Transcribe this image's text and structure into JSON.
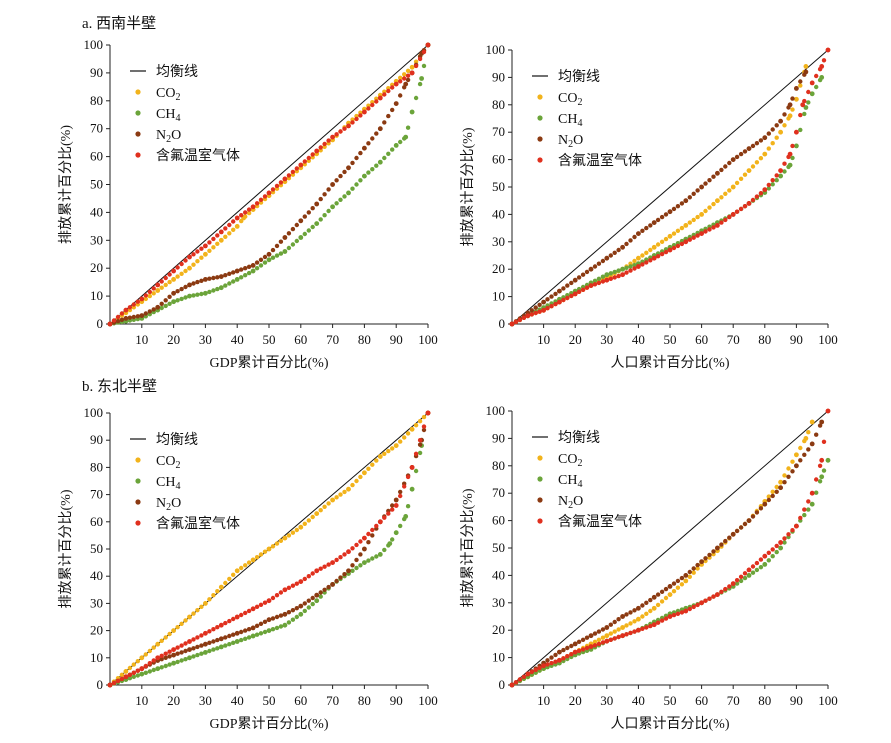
{
  "panels": {
    "a": {
      "label": "a. 西南半壁"
    },
    "b": {
      "label": "b. 东北半壁"
    }
  },
  "legend": [
    {
      "key": "eq",
      "label": "均衡线",
      "color": "#111111"
    },
    {
      "key": "co2",
      "label": "CO",
      "sub": "2",
      "color": "#f2b31b"
    },
    {
      "key": "ch4",
      "label": "CH",
      "sub": "4",
      "color": "#6ba43a"
    },
    {
      "key": "n2o",
      "label": "N",
      "sub": "2",
      "suffix": "O",
      "color": "#8b3a12"
    },
    {
      "key": "fgas",
      "label": "含氟温室气体",
      "color": "#e0301e"
    }
  ],
  "chart_data": [
    {
      "panel": "a",
      "type": "scatter",
      "xlabel": "GDP累计百分比(%)",
      "ylabel": "排放累计百分比(%)",
      "xlim": [
        0,
        100
      ],
      "ylim": [
        0,
        100
      ],
      "xticks": [
        10,
        20,
        30,
        40,
        50,
        60,
        70,
        80,
        90,
        100
      ],
      "yticks": [
        0,
        10,
        20,
        30,
        40,
        50,
        60,
        70,
        80,
        90,
        100
      ],
      "series": [
        {
          "name": "均衡线",
          "key": "eq",
          "x": [
            0,
            100
          ],
          "y": [
            0,
            100
          ]
        },
        {
          "name": "CO2",
          "key": "co2",
          "x": [
            0,
            5,
            10,
            15,
            20,
            25,
            30,
            35,
            40,
            42,
            45,
            50,
            55,
            60,
            65,
            70,
            75,
            80,
            85,
            90,
            95,
            100
          ],
          "y": [
            0,
            4,
            8,
            12,
            16,
            20,
            25,
            30,
            35,
            38,
            41,
            46,
            51,
            56,
            61,
            66,
            72,
            77,
            82,
            87,
            92,
            100
          ]
        },
        {
          "name": "CH4",
          "key": "ch4",
          "x": [
            0,
            5,
            10,
            15,
            20,
            25,
            30,
            35,
            40,
            45,
            50,
            55,
            60,
            65,
            70,
            75,
            80,
            85,
            90,
            93,
            95,
            98,
            100
          ],
          "y": [
            0,
            1,
            2,
            5,
            8,
            10,
            11,
            13,
            16,
            19,
            23,
            26,
            31,
            36,
            42,
            47,
            53,
            58,
            64,
            67,
            76,
            88,
            100
          ]
        },
        {
          "name": "N2O",
          "key": "n2o",
          "x": [
            0,
            5,
            10,
            15,
            20,
            25,
            30,
            35,
            40,
            45,
            50,
            55,
            60,
            65,
            70,
            75,
            80,
            85,
            90,
            93,
            95,
            98,
            100
          ],
          "y": [
            0,
            2,
            3,
            6,
            11,
            14,
            16,
            17,
            19,
            21,
            25,
            31,
            37,
            43,
            50,
            56,
            63,
            70,
            79,
            86,
            90,
            97,
            100
          ]
        },
        {
          "name": "含氟温室气体",
          "key": "fgas",
          "x": [
            0,
            5,
            10,
            15,
            20,
            25,
            30,
            35,
            40,
            45,
            50,
            55,
            60,
            65,
            70,
            75,
            80,
            85,
            90,
            95,
            100
          ],
          "y": [
            0,
            5,
            9,
            14,
            19,
            24,
            28,
            33,
            38,
            42,
            47,
            52,
            57,
            62,
            67,
            71,
            76,
            81,
            86,
            90,
            100
          ]
        }
      ]
    },
    {
      "panel": "a",
      "type": "scatter",
      "xlabel": "人口累计百分比(%)",
      "ylabel": "排放累计百分比(%)",
      "xlim": [
        0,
        100
      ],
      "ylim": [
        0,
        100
      ],
      "xticks": [
        10,
        20,
        30,
        40,
        50,
        60,
        70,
        80,
        90,
        100
      ],
      "yticks": [
        0,
        10,
        20,
        30,
        40,
        50,
        60,
        70,
        80,
        90,
        100
      ],
      "series": [
        {
          "name": "均衡线",
          "key": "eq",
          "x": [
            0,
            100
          ],
          "y": [
            0,
            100
          ]
        },
        {
          "name": "CO2",
          "key": "co2",
          "x": [
            0,
            5,
            10,
            15,
            20,
            25,
            30,
            35,
            40,
            45,
            50,
            55,
            60,
            65,
            70,
            75,
            80,
            85,
            88,
            90,
            93
          ],
          "y": [
            0,
            3,
            5,
            8,
            11,
            14,
            17,
            20,
            24,
            28,
            32,
            36,
            40,
            45,
            50,
            56,
            62,
            70,
            76,
            82,
            94
          ]
        },
        {
          "name": "CH4",
          "key": "ch4",
          "x": [
            0,
            5,
            10,
            15,
            20,
            25,
            30,
            35,
            40,
            45,
            50,
            55,
            60,
            65,
            70,
            75,
            80,
            85,
            88,
            90,
            93,
            95,
            98
          ],
          "y": [
            0,
            3,
            6,
            9,
            12,
            15,
            18,
            20,
            22,
            25,
            28,
            31,
            34,
            37,
            40,
            44,
            48,
            54,
            58,
            65,
            79,
            84,
            90
          ]
        },
        {
          "name": "N2O",
          "key": "n2o",
          "x": [
            0,
            5,
            10,
            15,
            20,
            25,
            30,
            35,
            40,
            45,
            50,
            55,
            60,
            65,
            70,
            75,
            80,
            85,
            88,
            90,
            93
          ],
          "y": [
            0,
            4,
            8,
            12,
            16,
            20,
            24,
            28,
            33,
            37,
            41,
            45,
            50,
            55,
            60,
            64,
            68,
            74,
            80,
            86,
            92
          ]
        },
        {
          "name": "含氟温室气体",
          "key": "fgas",
          "x": [
            0,
            5,
            10,
            15,
            20,
            25,
            30,
            35,
            40,
            45,
            50,
            55,
            60,
            65,
            70,
            75,
            80,
            85,
            88,
            90,
            92,
            95,
            98,
            100
          ],
          "y": [
            0,
            3,
            5,
            8,
            11,
            14,
            16,
            18,
            21,
            24,
            27,
            30,
            33,
            36,
            40,
            44,
            49,
            56,
            62,
            70,
            80,
            88,
            94,
            100
          ]
        }
      ]
    },
    {
      "panel": "b",
      "type": "scatter",
      "xlabel": "GDP累计百分比(%)",
      "ylabel": "排放累计百分比(%)",
      "xlim": [
        0,
        100
      ],
      "ylim": [
        0,
        100
      ],
      "xticks": [
        10,
        20,
        30,
        40,
        50,
        60,
        70,
        80,
        90,
        100
      ],
      "yticks": [
        0,
        10,
        20,
        30,
        40,
        50,
        60,
        70,
        80,
        90,
        100
      ],
      "series": [
        {
          "name": "均衡线",
          "key": "eq",
          "x": [
            0,
            100
          ],
          "y": [
            0,
            100
          ]
        },
        {
          "name": "CO2",
          "key": "co2",
          "x": [
            0,
            5,
            10,
            15,
            20,
            25,
            30,
            35,
            40,
            45,
            50,
            55,
            60,
            65,
            70,
            75,
            80,
            85,
            90,
            95,
            100
          ],
          "y": [
            0,
            5,
            10,
            15,
            20,
            25,
            30,
            36,
            42,
            46,
            50,
            54,
            58,
            63,
            68,
            72,
            78,
            84,
            88,
            94,
            100
          ]
        },
        {
          "name": "CH4",
          "key": "ch4",
          "x": [
            0,
            5,
            10,
            15,
            20,
            25,
            30,
            35,
            40,
            45,
            50,
            55,
            60,
            65,
            70,
            75,
            80,
            85,
            88,
            90,
            93,
            95,
            98
          ],
          "y": [
            0,
            2,
            4,
            6,
            8,
            10,
            12,
            14,
            16,
            18,
            20,
            22,
            26,
            31,
            37,
            41,
            45,
            48,
            52,
            56,
            62,
            72,
            88
          ]
        },
        {
          "name": "N2O",
          "key": "n2o",
          "x": [
            0,
            5,
            10,
            15,
            20,
            25,
            30,
            35,
            40,
            45,
            50,
            55,
            60,
            65,
            70,
            75,
            80,
            85,
            90,
            95,
            98,
            100
          ],
          "y": [
            0,
            3,
            6,
            9,
            11,
            13,
            15,
            17,
            19,
            21,
            24,
            26,
            29,
            33,
            37,
            42,
            50,
            60,
            68,
            80,
            90,
            100
          ]
        },
        {
          "name": "含氟温室气体",
          "key": "fgas",
          "x": [
            0,
            5,
            10,
            15,
            20,
            25,
            30,
            35,
            40,
            45,
            50,
            55,
            60,
            65,
            70,
            75,
            80,
            85,
            90,
            95,
            100
          ],
          "y": [
            0,
            3,
            6,
            10,
            13,
            16,
            19,
            22,
            25,
            28,
            31,
            35,
            38,
            42,
            45,
            49,
            54,
            60,
            66,
            80,
            100
          ]
        }
      ]
    },
    {
      "panel": "b",
      "type": "scatter",
      "xlabel": "人口累计百分比(%)",
      "ylabel": "排放累计百分比(%)",
      "xlim": [
        0,
        100
      ],
      "ylim": [
        0,
        100
      ],
      "xticks": [
        10,
        20,
        30,
        40,
        50,
        60,
        70,
        80,
        90,
        100
      ],
      "yticks": [
        0,
        10,
        20,
        30,
        40,
        50,
        60,
        70,
        80,
        90,
        100
      ],
      "series": [
        {
          "name": "均衡线",
          "key": "eq",
          "x": [
            0,
            100
          ],
          "y": [
            0,
            100
          ]
        },
        {
          "name": "CO2",
          "key": "co2",
          "x": [
            0,
            5,
            10,
            15,
            20,
            25,
            30,
            35,
            40,
            45,
            50,
            55,
            60,
            65,
            70,
            75,
            80,
            85,
            90,
            93,
            95
          ],
          "y": [
            0,
            3,
            6,
            9,
            12,
            15,
            18,
            21,
            24,
            28,
            33,
            38,
            44,
            49,
            55,
            60,
            67,
            74,
            84,
            90,
            96
          ]
        },
        {
          "name": "CH4",
          "key": "ch4",
          "x": [
            0,
            5,
            10,
            15,
            20,
            25,
            30,
            35,
            40,
            45,
            50,
            55,
            60,
            65,
            70,
            75,
            80,
            85,
            90,
            95,
            98,
            100
          ],
          "y": [
            0,
            3,
            6,
            8,
            11,
            13,
            16,
            18,
            20,
            23,
            26,
            28,
            30,
            33,
            36,
            40,
            44,
            50,
            58,
            66,
            76,
            82
          ]
        },
        {
          "name": "N2O",
          "key": "n2o",
          "x": [
            0,
            5,
            10,
            15,
            20,
            25,
            30,
            35,
            40,
            45,
            50,
            55,
            60,
            65,
            70,
            75,
            80,
            85,
            90,
            95,
            98
          ],
          "y": [
            0,
            4,
            8,
            12,
            15,
            18,
            21,
            25,
            28,
            32,
            36,
            40,
            45,
            50,
            55,
            60,
            66,
            72,
            80,
            88,
            96
          ]
        },
        {
          "name": "含氟温室气体",
          "key": "fgas",
          "x": [
            0,
            5,
            10,
            15,
            20,
            25,
            30,
            35,
            40,
            45,
            50,
            55,
            60,
            65,
            70,
            75,
            80,
            85,
            90,
            95,
            98,
            100
          ],
          "y": [
            0,
            4,
            7,
            9,
            12,
            14,
            16,
            18,
            20,
            22,
            25,
            27,
            30,
            33,
            37,
            42,
            47,
            52,
            58,
            70,
            82,
            100
          ]
        }
      ]
    }
  ]
}
